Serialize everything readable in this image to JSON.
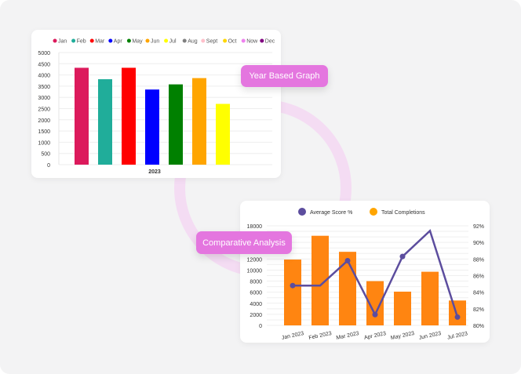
{
  "labels": {
    "year_graph": "Year Based Graph",
    "comparative": "Comparative Analysis"
  },
  "chart_data": [
    {
      "type": "bar",
      "title": "",
      "xlabel": "2023",
      "ylabel": "",
      "ylim": [
        0,
        5000
      ],
      "yticks": [
        0,
        500,
        1000,
        1500,
        2000,
        2500,
        3000,
        3500,
        4000,
        4500,
        5000
      ],
      "legend": [
        "Jan",
        "Feb",
        "Mar",
        "Apr",
        "May",
        "Jun",
        "Jul",
        "Aug",
        "Sept",
        "Oct",
        "Now",
        "Dec"
      ],
      "legend_colors": [
        "#dc1a5c",
        "#20ad9a",
        "#ff0000",
        "#0000ff",
        "#008000",
        "#ffa500",
        "#ffff00",
        "#808080",
        "#ffc0cb",
        "#ffd700",
        "#ee82ee",
        "#800080"
      ],
      "legend_position": "top",
      "series": [
        {
          "name": "Jan",
          "value": 4320
        },
        {
          "name": "Feb",
          "value": 3810
        },
        {
          "name": "Mar",
          "value": 4320
        },
        {
          "name": "Apr",
          "value": 3350
        },
        {
          "name": "May",
          "value": 3580
        },
        {
          "name": "Jun",
          "value": 3860
        },
        {
          "name": "Jul",
          "value": 2710
        }
      ]
    },
    {
      "type": "bar+line",
      "categories": [
        "Jan 2023",
        "Feb 2023",
        "Mar 2023",
        "Apr 2023",
        "May 2023",
        "Jun 2023",
        "Jul 2023"
      ],
      "legend_position": "top",
      "series": [
        {
          "name": "Average Score %",
          "type": "line",
          "axis": "right",
          "color": "#5c4d9e",
          "values": [
            84.8,
            84.8,
            87.8,
            81.3,
            88.3,
            91.4,
            81.0
          ]
        },
        {
          "name": "Total Completions",
          "type": "bar",
          "axis": "left",
          "color": "#ff8511",
          "legend_color": "#ffa500",
          "values": [
            11900,
            16200,
            13300,
            8000,
            6100,
            9700,
            4500
          ]
        }
      ],
      "ylim_left": [
        0,
        18000
      ],
      "yticks_left": [
        0,
        2000,
        4000,
        6000,
        8000,
        10000,
        12000,
        18000
      ],
      "ylim_right": [
        80,
        92
      ],
      "yticks_right": [
        "80%",
        "82%",
        "84%",
        "86%",
        "88%",
        "90%",
        "92%"
      ]
    }
  ]
}
